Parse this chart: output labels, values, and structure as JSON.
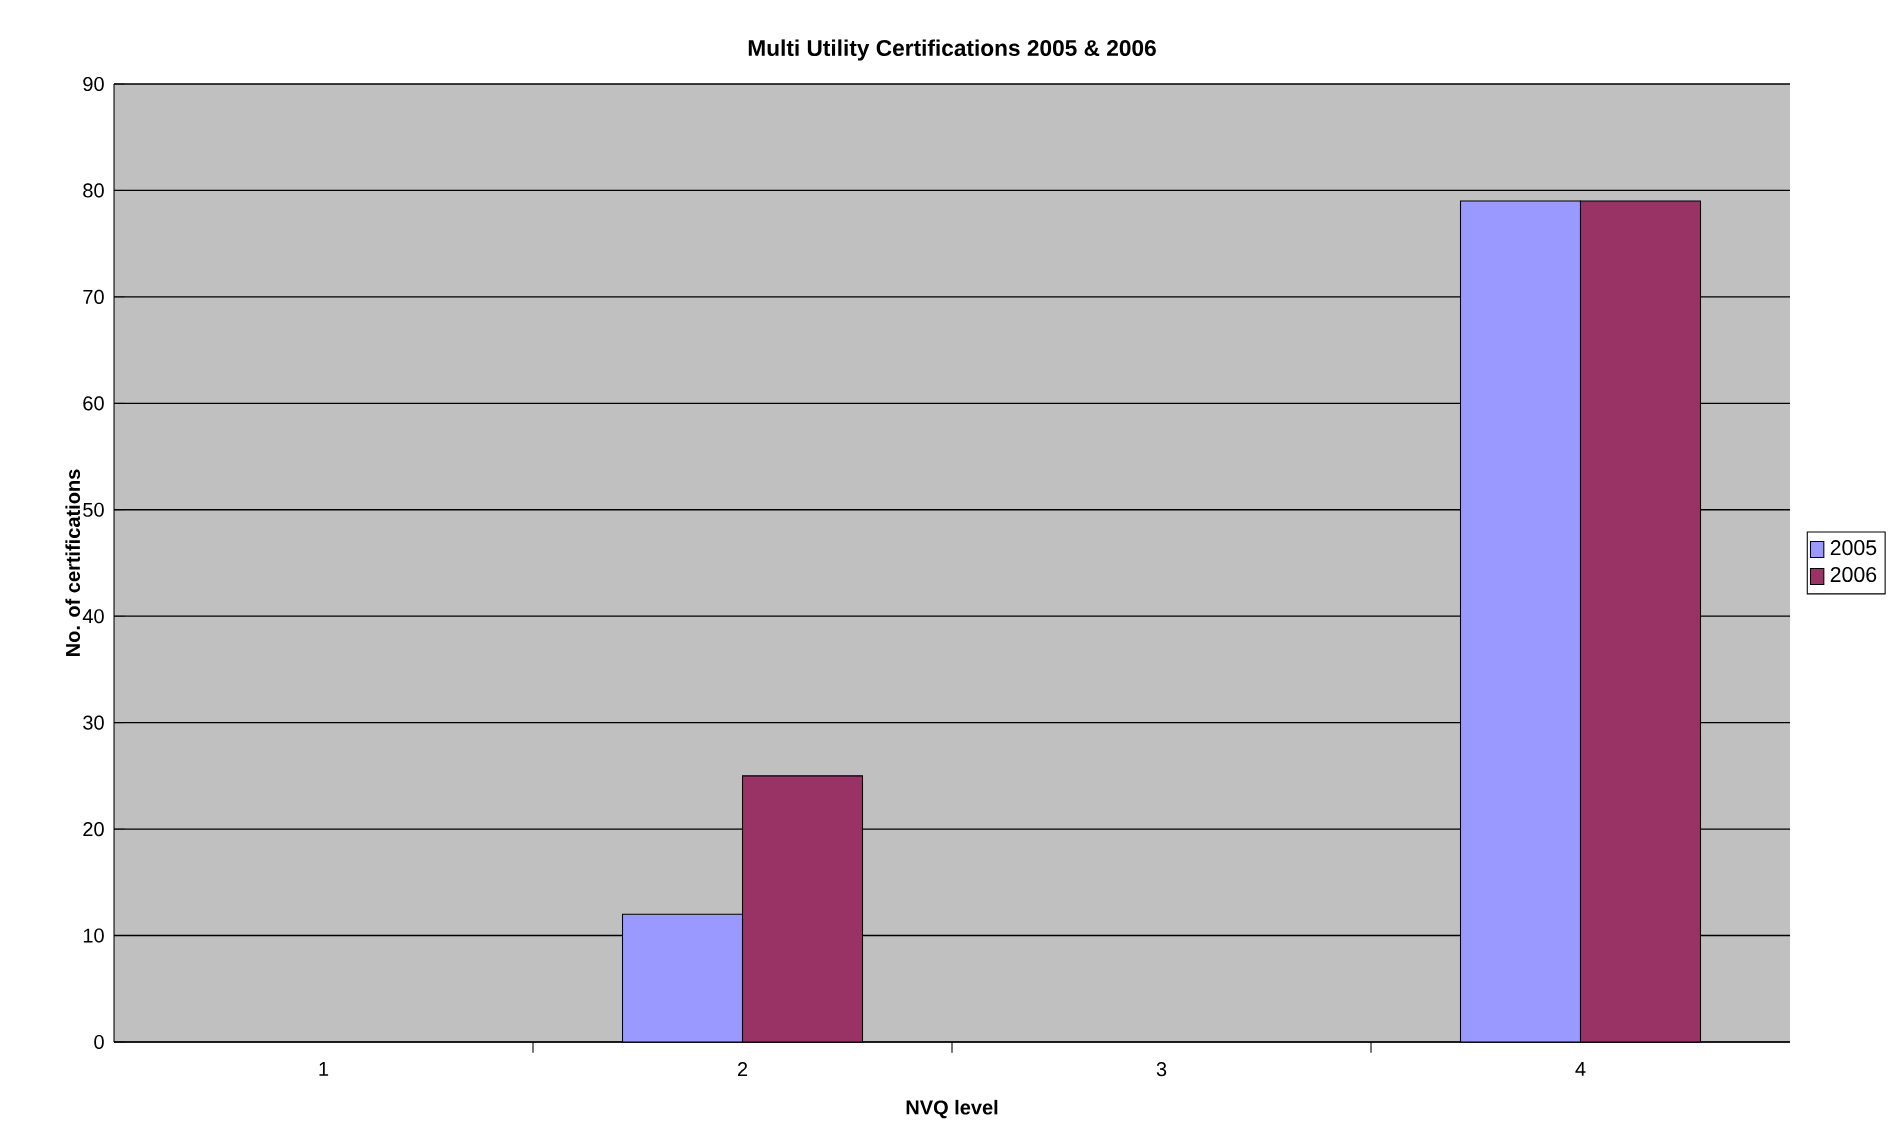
{
  "chart_data": {
    "type": "bar",
    "title": "**Multi Utility Certifications 2005 & 2006**",
    "xlabel": "**NVQ level**",
    "ylabel": "**No. of certifications**",
    "categories": [
      "1",
      "2",
      "3",
      "4"
    ],
    "series": [
      {
        "name": "2005",
        "color": "#9999ff",
        "values": [
          null,
          12,
          null,
          79
        ]
      },
      {
        "name": "2006",
        "color": "#993366",
        "values": [
          null,
          25,
          null,
          79
        ]
      }
    ],
    "ylim": [
      0,
      90
    ],
    "yticks": [
      0,
      10,
      20,
      30,
      40,
      50,
      60,
      70,
      80,
      90
    ],
    "grid": "y",
    "legend": "right"
  }
}
